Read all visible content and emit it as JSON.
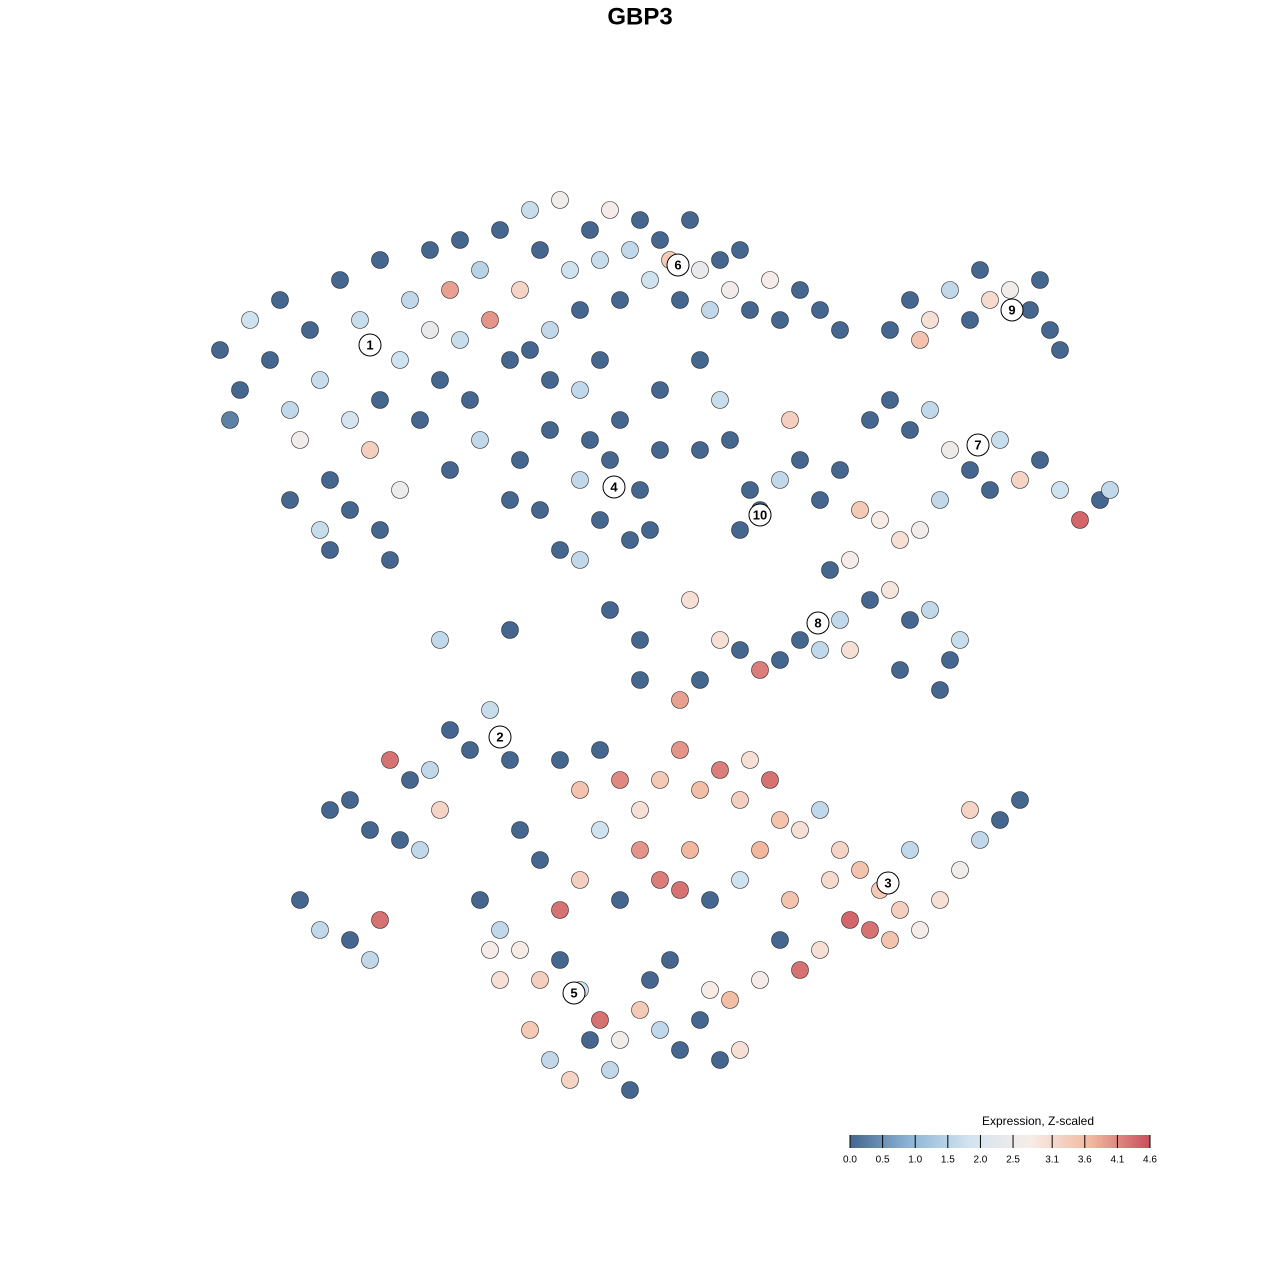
{
  "chart_data": {
    "type": "scatter",
    "title": "GBP3",
    "xlim": [
      20,
      113
    ],
    "ylim": [
      19,
      110
    ],
    "points": [
      {
        "x": 22,
        "y": 93,
        "value": 0
      },
      {
        "x": 24,
        "y": 89,
        "value": 0
      },
      {
        "x": 23,
        "y": 86,
        "value": 0.3
      },
      {
        "x": 25,
        "y": 96,
        "value": 1.8
      },
      {
        "x": 27,
        "y": 92,
        "value": 0
      },
      {
        "x": 28,
        "y": 98,
        "value": 0
      },
      {
        "x": 29,
        "y": 87,
        "value": 1.6
      },
      {
        "x": 30,
        "y": 84,
        "value": 2.6
      },
      {
        "x": 31,
        "y": 95,
        "value": 0
      },
      {
        "x": 32,
        "y": 90,
        "value": 1.7
      },
      {
        "x": 33,
        "y": 80,
        "value": 0
      },
      {
        "x": 33,
        "y": 73,
        "value": 0
      },
      {
        "x": 34,
        "y": 100,
        "value": 0
      },
      {
        "x": 35,
        "y": 86,
        "value": 1.9
      },
      {
        "x": 35,
        "y": 77,
        "value": 0
      },
      {
        "x": 36,
        "y": 96,
        "value": 1.7
      },
      {
        "x": 37,
        "y": 83,
        "value": 3.3
      },
      {
        "x": 38,
        "y": 88,
        "value": 0
      },
      {
        "x": 38,
        "y": 102,
        "value": 0
      },
      {
        "x": 39,
        "y": 72,
        "value": 0
      },
      {
        "x": 40,
        "y": 92,
        "value": 1.8
      },
      {
        "x": 40,
        "y": 79,
        "value": 2.5
      },
      {
        "x": 41,
        "y": 98,
        "value": 1.6
      },
      {
        "x": 42,
        "y": 86,
        "value": 0
      },
      {
        "x": 43,
        "y": 103,
        "value": 0
      },
      {
        "x": 43,
        "y": 95,
        "value": 2.4
      },
      {
        "x": 44,
        "y": 90,
        "value": 0
      },
      {
        "x": 45,
        "y": 99,
        "value": 3.9
      },
      {
        "x": 46,
        "y": 104,
        "value": 0
      },
      {
        "x": 46,
        "y": 94,
        "value": 1.7
      },
      {
        "x": 47,
        "y": 88,
        "value": 0
      },
      {
        "x": 48,
        "y": 101,
        "value": 1.5
      },
      {
        "x": 49,
        "y": 96,
        "value": 4.0
      },
      {
        "x": 50,
        "y": 105,
        "value": 0
      },
      {
        "x": 51,
        "y": 92,
        "value": 0
      },
      {
        "x": 52,
        "y": 99,
        "value": 3.2
      },
      {
        "x": 53,
        "y": 107,
        "value": 1.7
      },
      {
        "x": 54,
        "y": 103,
        "value": 0
      },
      {
        "x": 55,
        "y": 95,
        "value": 1.6
      },
      {
        "x": 56,
        "y": 108,
        "value": 2.6
      },
      {
        "x": 57,
        "y": 101,
        "value": 1.8
      },
      {
        "x": 58,
        "y": 97,
        "value": 0
      },
      {
        "x": 59,
        "y": 105,
        "value": 0
      },
      {
        "x": 60,
        "y": 102,
        "value": 1.7
      },
      {
        "x": 61,
        "y": 107,
        "value": 2.7
      },
      {
        "x": 62,
        "y": 98,
        "value": 0
      },
      {
        "x": 63,
        "y": 103,
        "value": 1.6
      },
      {
        "x": 64,
        "y": 106,
        "value": 0
      },
      {
        "x": 65,
        "y": 100,
        "value": 1.8
      },
      {
        "x": 66,
        "y": 104,
        "value": 0
      },
      {
        "x": 67,
        "y": 102,
        "value": 3.4
      },
      {
        "x": 68,
        "y": 98,
        "value": 0
      },
      {
        "x": 69,
        "y": 106,
        "value": 0
      },
      {
        "x": 70,
        "y": 101,
        "value": 2.4
      },
      {
        "x": 71,
        "y": 97,
        "value": 1.6
      },
      {
        "x": 72,
        "y": 102,
        "value": 0
      },
      {
        "x": 73,
        "y": 99,
        "value": 2.6
      },
      {
        "x": 74,
        "y": 103,
        "value": 0
      },
      {
        "x": 75,
        "y": 97,
        "value": 0
      },
      {
        "x": 77,
        "y": 100,
        "value": 2.7
      },
      {
        "x": 78,
        "y": 96,
        "value": 0
      },
      {
        "x": 80,
        "y": 99,
        "value": 0
      },
      {
        "x": 82,
        "y": 97,
        "value": 0
      },
      {
        "x": 84,
        "y": 95,
        "value": 0
      },
      {
        "x": 53,
        "y": 93,
        "value": 0
      },
      {
        "x": 55,
        "y": 90,
        "value": 0
      },
      {
        "x": 48,
        "y": 84,
        "value": 1.6
      },
      {
        "x": 45,
        "y": 81,
        "value": 0
      },
      {
        "x": 29,
        "y": 78,
        "value": 0
      },
      {
        "x": 32,
        "y": 75,
        "value": 1.7
      },
      {
        "x": 38,
        "y": 75,
        "value": 0
      },
      {
        "x": 70,
        "y": 92,
        "value": 0
      },
      {
        "x": 72,
        "y": 88,
        "value": 1.7
      },
      {
        "x": 66,
        "y": 89,
        "value": 0
      },
      {
        "x": 60,
        "y": 92,
        "value": 0
      },
      {
        "x": 58,
        "y": 89,
        "value": 1.6
      },
      {
        "x": 52,
        "y": 82,
        "value": 0
      },
      {
        "x": 54,
        "y": 77,
        "value": 0
      },
      {
        "x": 56,
        "y": 73,
        "value": 0
      },
      {
        "x": 55,
        "y": 85,
        "value": 0
      },
      {
        "x": 58,
        "y": 80,
        "value": 1.6
      },
      {
        "x": 60,
        "y": 76,
        "value": 0
      },
      {
        "x": 61,
        "y": 82,
        "value": 0
      },
      {
        "x": 63,
        "y": 74,
        "value": 0
      },
      {
        "x": 64,
        "y": 79,
        "value": 0
      },
      {
        "x": 66,
        "y": 83,
        "value": 0
      },
      {
        "x": 58,
        "y": 72,
        "value": 1.6
      },
      {
        "x": 62,
        "y": 86,
        "value": 0
      },
      {
        "x": 51,
        "y": 78,
        "value": 0
      },
      {
        "x": 59,
        "y": 84,
        "value": 0
      },
      {
        "x": 65,
        "y": 75,
        "value": 0
      },
      {
        "x": 70,
        "y": 83,
        "value": 0
      },
      {
        "x": 73,
        "y": 84,
        "value": 0
      },
      {
        "x": 75,
        "y": 79,
        "value": 0
      },
      {
        "x": 76,
        "y": 77,
        "value": 0
      },
      {
        "x": 78,
        "y": 80,
        "value": 1.6
      },
      {
        "x": 80,
        "y": 82,
        "value": 0
      },
      {
        "x": 82,
        "y": 78,
        "value": 0
      },
      {
        "x": 79,
        "y": 86,
        "value": 3.3
      },
      {
        "x": 84,
        "y": 81,
        "value": 0
      },
      {
        "x": 74,
        "y": 75,
        "value": 0
      },
      {
        "x": 89,
        "y": 95,
        "value": 0
      },
      {
        "x": 91,
        "y": 98,
        "value": 0
      },
      {
        "x": 93,
        "y": 96,
        "value": 3.0
      },
      {
        "x": 95,
        "y": 99,
        "value": 1.6
      },
      {
        "x": 97,
        "y": 96,
        "value": 0
      },
      {
        "x": 99,
        "y": 98,
        "value": 3.1
      },
      {
        "x": 101,
        "y": 99,
        "value": 2.6
      },
      {
        "x": 103,
        "y": 97,
        "value": 0
      },
      {
        "x": 105,
        "y": 95,
        "value": 0
      },
      {
        "x": 106,
        "y": 93,
        "value": 0
      },
      {
        "x": 98,
        "y": 101,
        "value": 0
      },
      {
        "x": 92,
        "y": 94,
        "value": 3.5
      },
      {
        "x": 104,
        "y": 100,
        "value": 0
      },
      {
        "x": 87,
        "y": 86,
        "value": 0
      },
      {
        "x": 89,
        "y": 88,
        "value": 0
      },
      {
        "x": 91,
        "y": 85,
        "value": 0
      },
      {
        "x": 93,
        "y": 87,
        "value": 1.6
      },
      {
        "x": 95,
        "y": 83,
        "value": 2.5
      },
      {
        "x": 97,
        "y": 81,
        "value": 0
      },
      {
        "x": 100,
        "y": 84,
        "value": 1.7
      },
      {
        "x": 102,
        "y": 80,
        "value": 3.2
      },
      {
        "x": 104,
        "y": 82,
        "value": 0
      },
      {
        "x": 106,
        "y": 79,
        "value": 1.8
      },
      {
        "x": 108,
        "y": 76,
        "value": 4.4
      },
      {
        "x": 110,
        "y": 78,
        "value": 0
      },
      {
        "x": 111,
        "y": 79,
        "value": 1.6
      },
      {
        "x": 99,
        "y": 79,
        "value": 0
      },
      {
        "x": 86,
        "y": 77,
        "value": 3.4
      },
      {
        "x": 88,
        "y": 76,
        "value": 2.8
      },
      {
        "x": 90,
        "y": 74,
        "value": 3.0
      },
      {
        "x": 92,
        "y": 75,
        "value": 2.6
      },
      {
        "x": 94,
        "y": 78,
        "value": 1.6
      },
      {
        "x": 85,
        "y": 72,
        "value": 2.7
      },
      {
        "x": 87,
        "y": 68,
        "value": 0
      },
      {
        "x": 89,
        "y": 69,
        "value": 2.9
      },
      {
        "x": 91,
        "y": 66,
        "value": 0
      },
      {
        "x": 93,
        "y": 67,
        "value": 1.6
      },
      {
        "x": 95,
        "y": 62,
        "value": 0
      },
      {
        "x": 96,
        "y": 64,
        "value": 1.7
      },
      {
        "x": 90,
        "y": 61,
        "value": 0
      },
      {
        "x": 94,
        "y": 59,
        "value": 0
      },
      {
        "x": 83,
        "y": 71,
        "value": 0
      },
      {
        "x": 84,
        "y": 66,
        "value": 1.6
      },
      {
        "x": 85,
        "y": 63,
        "value": 3.0
      },
      {
        "x": 72,
        "y": 64,
        "value": 3.0
      },
      {
        "x": 74,
        "y": 63,
        "value": 0
      },
      {
        "x": 76,
        "y": 61,
        "value": 4.2
      },
      {
        "x": 78,
        "y": 62,
        "value": 0
      },
      {
        "x": 80,
        "y": 64,
        "value": 0
      },
      {
        "x": 82,
        "y": 63,
        "value": 1.6
      },
      {
        "x": 70,
        "y": 60,
        "value": 0
      },
      {
        "x": 68,
        "y": 58,
        "value": 3.9
      },
      {
        "x": 64,
        "y": 64,
        "value": 0
      },
      {
        "x": 33,
        "y": 47,
        "value": 0
      },
      {
        "x": 35,
        "y": 48,
        "value": 0
      },
      {
        "x": 37,
        "y": 45,
        "value": 0
      },
      {
        "x": 39,
        "y": 52,
        "value": 4.3
      },
      {
        "x": 41,
        "y": 50,
        "value": 0
      },
      {
        "x": 43,
        "y": 51,
        "value": 1.6
      },
      {
        "x": 44,
        "y": 47,
        "value": 3.2
      },
      {
        "x": 45,
        "y": 55,
        "value": 0
      },
      {
        "x": 47,
        "y": 53,
        "value": 0
      },
      {
        "x": 49,
        "y": 57,
        "value": 1.7
      },
      {
        "x": 51,
        "y": 52,
        "value": 0
      },
      {
        "x": 40,
        "y": 44,
        "value": 0
      },
      {
        "x": 42,
        "y": 43,
        "value": 1.6
      },
      {
        "x": 30,
        "y": 38,
        "value": 0
      },
      {
        "x": 32,
        "y": 35,
        "value": 1.6
      },
      {
        "x": 35,
        "y": 34,
        "value": 0
      },
      {
        "x": 38,
        "y": 36,
        "value": 4.3
      },
      {
        "x": 37,
        "y": 32,
        "value": 1.6
      },
      {
        "x": 56,
        "y": 52,
        "value": 0
      },
      {
        "x": 58,
        "y": 49,
        "value": 3.5
      },
      {
        "x": 60,
        "y": 53,
        "value": 0
      },
      {
        "x": 62,
        "y": 50,
        "value": 4.1
      },
      {
        "x": 64,
        "y": 47,
        "value": 3.0
      },
      {
        "x": 66,
        "y": 50,
        "value": 3.4
      },
      {
        "x": 68,
        "y": 53,
        "value": 4.0
      },
      {
        "x": 70,
        "y": 49,
        "value": 3.6
      },
      {
        "x": 72,
        "y": 51,
        "value": 4.2
      },
      {
        "x": 74,
        "y": 48,
        "value": 3.3
      },
      {
        "x": 75,
        "y": 52,
        "value": 3.0
      },
      {
        "x": 77,
        "y": 50,
        "value": 4.3
      },
      {
        "x": 78,
        "y": 46,
        "value": 3.5
      },
      {
        "x": 80,
        "y": 45,
        "value": 3.0
      },
      {
        "x": 82,
        "y": 47,
        "value": 1.6
      },
      {
        "x": 84,
        "y": 43,
        "value": 3.2
      },
      {
        "x": 86,
        "y": 41,
        "value": 3.5
      },
      {
        "x": 88,
        "y": 39,
        "value": 3.4
      },
      {
        "x": 90,
        "y": 37,
        "value": 3.3
      },
      {
        "x": 92,
        "y": 35,
        "value": 2.7
      },
      {
        "x": 94,
        "y": 38,
        "value": 3.0
      },
      {
        "x": 96,
        "y": 41,
        "value": 2.6
      },
      {
        "x": 98,
        "y": 44,
        "value": 1.6
      },
      {
        "x": 100,
        "y": 46,
        "value": 0
      },
      {
        "x": 102,
        "y": 48,
        "value": 0
      },
      {
        "x": 97,
        "y": 47,
        "value": 3.2
      },
      {
        "x": 91,
        "y": 43,
        "value": 1.6
      },
      {
        "x": 85,
        "y": 36,
        "value": 4.4
      },
      {
        "x": 87,
        "y": 35,
        "value": 4.3
      },
      {
        "x": 89,
        "y": 34,
        "value": 3.5
      },
      {
        "x": 82,
        "y": 33,
        "value": 3.0
      },
      {
        "x": 80,
        "y": 31,
        "value": 4.3
      },
      {
        "x": 78,
        "y": 34,
        "value": 0
      },
      {
        "x": 76,
        "y": 30,
        "value": 2.7
      },
      {
        "x": 73,
        "y": 28,
        "value": 3.6
      },
      {
        "x": 71,
        "y": 38,
        "value": 0
      },
      {
        "x": 68,
        "y": 39,
        "value": 4.3
      },
      {
        "x": 66,
        "y": 40,
        "value": 4.2
      },
      {
        "x": 64,
        "y": 43,
        "value": 4.0
      },
      {
        "x": 60,
        "y": 45,
        "value": 1.8
      },
      {
        "x": 58,
        "y": 40,
        "value": 3.3
      },
      {
        "x": 56,
        "y": 37,
        "value": 4.3
      },
      {
        "x": 54,
        "y": 42,
        "value": 0
      },
      {
        "x": 52,
        "y": 45,
        "value": 0
      },
      {
        "x": 62,
        "y": 38,
        "value": 0
      },
      {
        "x": 69,
        "y": 43,
        "value": 3.7
      },
      {
        "x": 74,
        "y": 40,
        "value": 1.8
      },
      {
        "x": 76,
        "y": 43,
        "value": 3.7
      },
      {
        "x": 79,
        "y": 38,
        "value": 3.5
      },
      {
        "x": 83,
        "y": 40,
        "value": 3.1
      },
      {
        "x": 48,
        "y": 38,
        "value": 0
      },
      {
        "x": 50,
        "y": 35,
        "value": 1.6
      },
      {
        "x": 52,
        "y": 33,
        "value": 2.8
      },
      {
        "x": 54,
        "y": 30,
        "value": 3.3
      },
      {
        "x": 56,
        "y": 32,
        "value": 0
      },
      {
        "x": 58,
        "y": 29,
        "value": 1.8
      },
      {
        "x": 60,
        "y": 26,
        "value": 4.3
      },
      {
        "x": 62,
        "y": 24,
        "value": 2.6
      },
      {
        "x": 64,
        "y": 27,
        "value": 3.4
      },
      {
        "x": 66,
        "y": 25,
        "value": 1.6
      },
      {
        "x": 68,
        "y": 23,
        "value": 0
      },
      {
        "x": 70,
        "y": 26,
        "value": 0
      },
      {
        "x": 72,
        "y": 22,
        "value": 0
      },
      {
        "x": 74,
        "y": 23,
        "value": 3.0
      },
      {
        "x": 55,
        "y": 22,
        "value": 1.6
      },
      {
        "x": 57,
        "y": 20,
        "value": 3.2
      },
      {
        "x": 59,
        "y": 24,
        "value": 0
      },
      {
        "x": 61,
        "y": 21,
        "value": 1.6
      },
      {
        "x": 63,
        "y": 19,
        "value": 0
      },
      {
        "x": 53,
        "y": 25,
        "value": 3.4
      },
      {
        "x": 50,
        "y": 30,
        "value": 3.0
      },
      {
        "x": 49,
        "y": 33,
        "value": 2.7
      },
      {
        "x": 65,
        "y": 30,
        "value": 0
      },
      {
        "x": 67,
        "y": 32,
        "value": 0
      },
      {
        "x": 71,
        "y": 29,
        "value": 2.8
      },
      {
        "x": 44,
        "y": 64,
        "value": 1.6
      },
      {
        "x": 51,
        "y": 65,
        "value": 0
      },
      {
        "x": 64,
        "y": 60,
        "value": 0
      },
      {
        "x": 69,
        "y": 68,
        "value": 3.0
      },
      {
        "x": 61,
        "y": 67,
        "value": 0
      }
    ],
    "clusters": [
      {
        "label": "1",
        "x": 37.0,
        "y": 93.5
      },
      {
        "label": "2",
        "x": 50.0,
        "y": 54.3
      },
      {
        "label": "3",
        "x": 88.8,
        "y": 39.7
      },
      {
        "label": "4",
        "x": 61.4,
        "y": 79.3
      },
      {
        "label": "5",
        "x": 57.4,
        "y": 28.7
      },
      {
        "label": "6",
        "x": 67.8,
        "y": 101.5
      },
      {
        "label": "7",
        "x": 97.8,
        "y": 83.5
      },
      {
        "label": "8",
        "x": 81.8,
        "y": 65.7
      },
      {
        "label": "9",
        "x": 101.2,
        "y": 97.0
      },
      {
        "label": "10",
        "x": 76.0,
        "y": 76.5
      }
    ],
    "colorbar": {
      "title": "Expression, Z-scaled",
      "lim": [
        0,
        4.6
      ],
      "ticks": [
        {
          "value": 0,
          "label": "0.0"
        },
        0.5,
        {
          "value": 1,
          "label": "1.0"
        },
        1.5,
        {
          "value": 2,
          "label": "2.0"
        },
        2.5,
        3.1,
        3.6,
        4.1,
        4.6
      ],
      "colors": [
        "#44668f",
        "#8db5d6",
        "#d2e4f0",
        "#f7ede8",
        "#f2b9a0",
        "#c94f5c"
      ]
    }
  }
}
